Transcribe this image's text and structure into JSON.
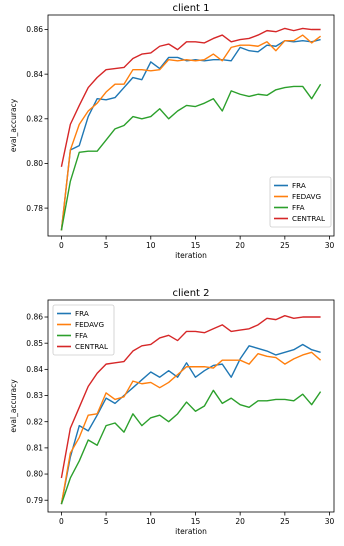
{
  "chart_data": [
    {
      "type": "line",
      "title": "client 1",
      "xlabel": "iteration",
      "ylabel": "eval_accuracy",
      "xlim": [
        -1.5,
        30.5
      ],
      "ylim": [
        0.7675,
        0.8665
      ],
      "grid": false,
      "legend_position": "lower-right",
      "x_ticks": [
        0,
        5,
        10,
        15,
        20,
        25,
        30
      ],
      "x_tick_labels": [
        "0",
        "5",
        "10",
        "15",
        "20",
        "25",
        "30"
      ],
      "y_ticks": [
        0.78,
        0.8,
        0.82,
        0.84,
        0.86
      ],
      "y_tick_labels": [
        "0.78",
        "0.80",
        "0.82",
        "0.84",
        "0.86"
      ],
      "x": [
        0,
        1,
        2,
        3,
        4,
        5,
        6,
        7,
        8,
        9,
        10,
        11,
        12,
        13,
        14,
        15,
        16,
        17,
        18,
        19,
        20,
        21,
        22,
        23,
        24,
        25,
        26,
        27,
        28,
        29
      ],
      "series": [
        {
          "name": "FRA",
          "color": "#1f77b4",
          "values": [
            0.77,
            0.806,
            0.808,
            0.821,
            0.829,
            0.8285,
            0.8295,
            0.834,
            0.8385,
            0.8375,
            0.8455,
            0.8425,
            0.8475,
            0.8475,
            0.846,
            0.8465,
            0.846,
            0.8465,
            0.8465,
            0.846,
            0.852,
            0.8505,
            0.85,
            0.853,
            0.8525,
            0.855,
            0.8545,
            0.855,
            0.8545,
            0.8555
          ]
        },
        {
          "name": "FEDAVG",
          "color": "#ff7f0e",
          "values": [
            0.77,
            0.806,
            0.8175,
            0.8235,
            0.827,
            0.832,
            0.8355,
            0.8355,
            0.842,
            0.842,
            0.8415,
            0.842,
            0.8465,
            0.846,
            0.8465,
            0.846,
            0.8465,
            0.849,
            0.846,
            0.852,
            0.853,
            0.853,
            0.8525,
            0.8545,
            0.8505,
            0.855,
            0.855,
            0.8575,
            0.854,
            0.857
          ]
        },
        {
          "name": "FFA",
          "color": "#2ca02c",
          "values": [
            0.77,
            0.792,
            0.805,
            0.8055,
            0.8055,
            0.8105,
            0.8155,
            0.817,
            0.821,
            0.82,
            0.821,
            0.8245,
            0.82,
            0.8235,
            0.826,
            0.8255,
            0.827,
            0.829,
            0.8235,
            0.8325,
            0.831,
            0.83,
            0.831,
            0.8305,
            0.833,
            0.834,
            0.8345,
            0.8345,
            0.829,
            0.8355
          ]
        },
        {
          "name": "CENTRAL",
          "color": "#d62728",
          "values": [
            0.7985,
            0.8175,
            0.826,
            0.834,
            0.8385,
            0.842,
            0.8425,
            0.843,
            0.847,
            0.849,
            0.8495,
            0.8525,
            0.8535,
            0.851,
            0.8545,
            0.8545,
            0.854,
            0.856,
            0.8575,
            0.8545,
            0.8555,
            0.856,
            0.8575,
            0.8595,
            0.859,
            0.8605,
            0.8595,
            0.8605,
            0.86,
            0.86
          ]
        }
      ]
    },
    {
      "type": "line",
      "title": "client 2",
      "xlabel": "iteration",
      "ylabel": "eval_accuracy",
      "xlim": [
        -1.5,
        30.5
      ],
      "ylim": [
        0.7855,
        0.8665
      ],
      "grid": false,
      "legend_position": "upper-left",
      "x_ticks": [
        0,
        5,
        10,
        15,
        20,
        25,
        30
      ],
      "x_tick_labels": [
        "0",
        "5",
        "10",
        "15",
        "20",
        "25",
        "30"
      ],
      "y_ticks": [
        0.79,
        0.8,
        0.81,
        0.82,
        0.83,
        0.84,
        0.85,
        0.86
      ],
      "y_tick_labels": [
        "0.79",
        "0.80",
        "0.81",
        "0.82",
        "0.83",
        "0.84",
        "0.85",
        "0.86"
      ],
      "x": [
        0,
        1,
        2,
        3,
        4,
        5,
        6,
        7,
        8,
        9,
        10,
        11,
        12,
        13,
        14,
        15,
        16,
        17,
        18,
        19,
        20,
        21,
        22,
        23,
        24,
        25,
        26,
        27,
        28,
        29
      ],
      "series": [
        {
          "name": "FRA",
          "color": "#1f77b4",
          "values": [
            0.7885,
            0.8065,
            0.8185,
            0.8165,
            0.8225,
            0.829,
            0.827,
            0.83,
            0.833,
            0.836,
            0.839,
            0.837,
            0.8395,
            0.837,
            0.8425,
            0.837,
            0.8395,
            0.8415,
            0.842,
            0.837,
            0.844,
            0.849,
            0.848,
            0.847,
            0.8455,
            0.8465,
            0.8475,
            0.8495,
            0.8475,
            0.8465
          ]
        },
        {
          "name": "FEDAVG",
          "color": "#ff7f0e",
          "values": [
            0.7885,
            0.808,
            0.814,
            0.8225,
            0.823,
            0.831,
            0.8285,
            0.8295,
            0.8355,
            0.8345,
            0.835,
            0.833,
            0.835,
            0.838,
            0.841,
            0.841,
            0.841,
            0.8405,
            0.8435,
            0.8435,
            0.8435,
            0.842,
            0.846,
            0.845,
            0.8445,
            0.842,
            0.844,
            0.8455,
            0.8465,
            0.8435
          ]
        },
        {
          "name": "FFA",
          "color": "#2ca02c",
          "values": [
            0.7885,
            0.7985,
            0.805,
            0.813,
            0.811,
            0.8185,
            0.8195,
            0.816,
            0.823,
            0.8185,
            0.8215,
            0.8225,
            0.82,
            0.823,
            0.8275,
            0.824,
            0.826,
            0.832,
            0.827,
            0.829,
            0.8265,
            0.8255,
            0.828,
            0.828,
            0.8285,
            0.8285,
            0.828,
            0.8305,
            0.8265,
            0.8315
          ]
        },
        {
          "name": "CENTRAL",
          "color": "#d62728",
          "values": [
            0.7985,
            0.8175,
            0.8255,
            0.8335,
            0.8385,
            0.842,
            0.8425,
            0.843,
            0.847,
            0.849,
            0.8495,
            0.852,
            0.853,
            0.851,
            0.8545,
            0.8545,
            0.854,
            0.8555,
            0.857,
            0.8545,
            0.855,
            0.8555,
            0.857,
            0.8595,
            0.859,
            0.8605,
            0.8595,
            0.86,
            0.86,
            0.86
          ]
        }
      ]
    }
  ]
}
